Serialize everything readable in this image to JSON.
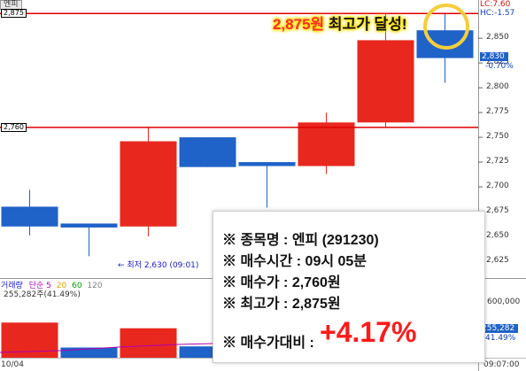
{
  "chart_data": {
    "type": "candlestick",
    "panel_tab": "엔피",
    "y_ticks": [
      "2,850",
      "2,825",
      "2,800",
      "2,775",
      "2,750",
      "2,725",
      "2,700",
      "2,675",
      "2,650",
      "2,625"
    ],
    "ylim": [
      2608,
      2885
    ],
    "candles": [
      {
        "open": 2680,
        "high": 2697,
        "low": 2651,
        "close": 2660,
        "color": "blue"
      },
      {
        "open": 2663,
        "high": 2663,
        "low": 2630,
        "close": 2659,
        "color": "blue"
      },
      {
        "open": 2660,
        "high": 2760,
        "low": 2650,
        "close": 2746,
        "color": "red"
      },
      {
        "open": 2750,
        "high": 2750,
        "low": 2720,
        "close": 2720,
        "color": "blue"
      },
      {
        "open": 2725,
        "high": 2725,
        "low": 2679,
        "close": 2721,
        "color": "blue"
      },
      {
        "open": 2721,
        "high": 2775,
        "low": 2713,
        "close": 2765,
        "color": "red"
      },
      {
        "open": 2765,
        "high": 2875,
        "low": 2760,
        "close": 2848,
        "color": "red"
      },
      {
        "open": 2858,
        "high": 2875,
        "low": 2805,
        "close": 2830,
        "color": "blue"
      }
    ],
    "hlines": [
      {
        "label": "2,875",
        "value": 2875
      },
      {
        "label": "2,760",
        "value": 2760
      }
    ],
    "right_tags": {
      "lc": "LC:7.60",
      "hc": "HC:-1.57",
      "price": "2,830",
      "pct": "-0.70%"
    },
    "low_annotation": "← 최저 2,630 (09:01)",
    "volume": {
      "legend_main": "거래량",
      "legend_ma_label": "단순",
      "legend_ma_values": [
        "5",
        "20",
        "60",
        "120"
      ],
      "legend_ma_colors": [
        "#b000b0",
        "#e0a000",
        "#00a000",
        "#808080"
      ],
      "legend_value": "255,282주(41.49%)",
      "right_ticks": [
        "600,000"
      ],
      "right_tag": "255,282",
      "right_tag_pct": "41.49%",
      "bars": [
        {
          "value": 0.62,
          "color": "red"
        },
        {
          "value": 0.18,
          "color": "blue"
        },
        {
          "value": 0.52,
          "color": "red"
        },
        {
          "value": 0.2,
          "color": "blue"
        }
      ]
    },
    "x_start_label": "10/04",
    "x_end_label": "09:07:00"
  },
  "banner": {
    "price": "2,875원",
    "text": " 최고가 달성!"
  },
  "info": {
    "line1": "※ 종목명 : 엔피 (291230)",
    "line2": "※ 매수시간 : 09시 05분",
    "line3": "※ 매수가 : 2,760원",
    "line4": "※ 최고가 : 2,875원",
    "line5_label": "※ 매수가대비 :",
    "line5_value": "+4.17%"
  },
  "colors": {
    "up": "#e8281e",
    "down": "#1f62c8",
    "hline": "#e00000",
    "highlight": "#f5cd3c"
  }
}
